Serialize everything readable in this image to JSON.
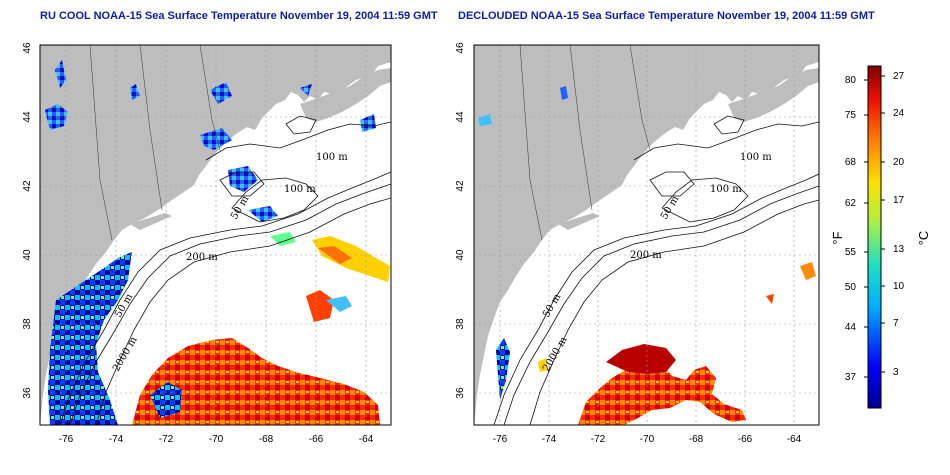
{
  "left_panel": {
    "title": "RU COOL NOAA-15 Sea Surface Temperature November 19, 2004 11:59 GMT"
  },
  "right_panel": {
    "title": "DECLOUDED NOAA-15 Sea Surface Temperature November 19, 2004 11:59 GMT"
  },
  "x_ticks": [
    "-76",
    "-74",
    "-72",
    "-70",
    "-68",
    "-66",
    "-64"
  ],
  "y_ticks": [
    "46",
    "44",
    "42",
    "40",
    "38",
    "36"
  ],
  "contours": {
    "left": [
      "100 m",
      "100 m",
      "50 m",
      "200 m",
      "50 m",
      "2000 m"
    ],
    "right": [
      "100 m",
      "100 m",
      "50 m",
      "200 m",
      "50 m",
      "2000 m"
    ]
  },
  "colorbar": {
    "fahrenheit_label": "°F",
    "celsius_label": "°C",
    "fahrenheit_ticks": [
      "80",
      "75",
      "68",
      "62",
      "55",
      "50",
      "44",
      "37"
    ],
    "celsius_ticks": [
      "27",
      "24",
      "20",
      "17",
      "13",
      "10",
      "7",
      "3"
    ]
  },
  "colors": {
    "land": "#bdbdbd",
    "ocean": "#ffffff",
    "title": "#0a1f9c",
    "grid": "#9a9a9a"
  }
}
